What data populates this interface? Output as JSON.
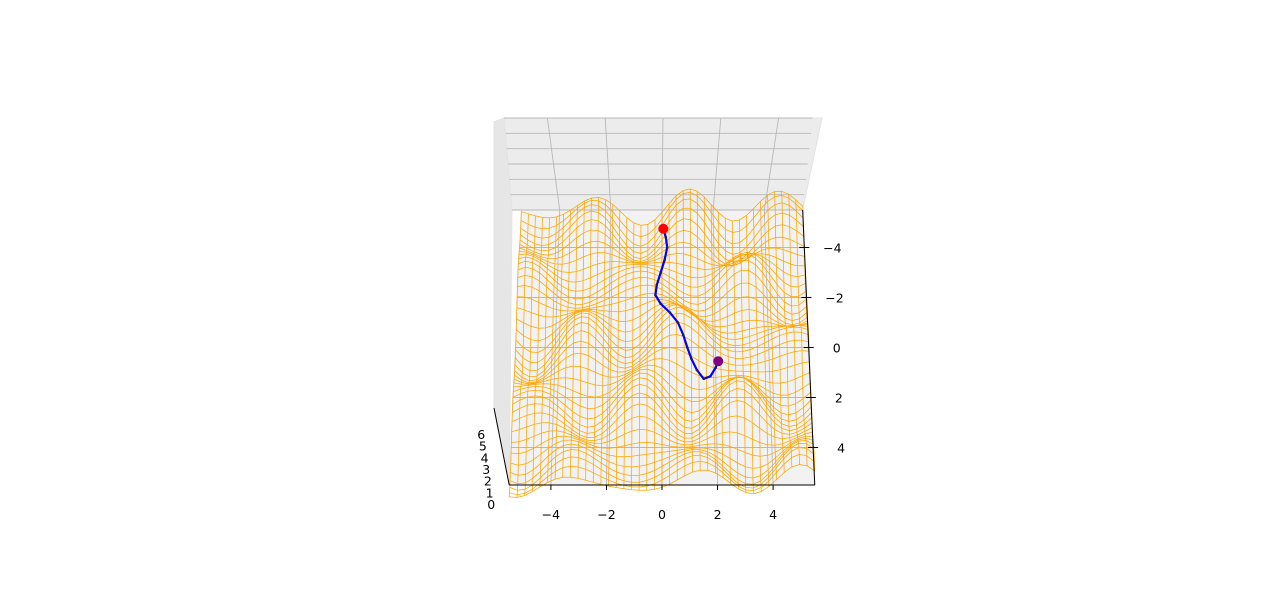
{
  "chart_data": {
    "type": "surface-3d",
    "title": "",
    "xlabel": "",
    "ylabel": "",
    "zlabel": "",
    "x_ticks": [
      -4,
      -2,
      0,
      2,
      4
    ],
    "y_ticks": [
      -4,
      -2,
      0,
      2,
      4
    ],
    "z_ticks": [
      0,
      1,
      2,
      3,
      4,
      5,
      6
    ],
    "x_tick_labels": [
      "−4",
      "−2",
      "0",
      "2",
      "4"
    ],
    "y_tick_labels": [
      "−4",
      "−2",
      "0",
      "2",
      "4"
    ],
    "z_tick_labels": [
      "0",
      "1",
      "2",
      "3",
      "4",
      "5",
      "6"
    ],
    "xlim": [
      -5.5,
      5.5
    ],
    "ylim": [
      -5.5,
      5.5
    ],
    "zlim": [
      0,
      6
    ],
    "grid": true,
    "surface": {
      "style": "wireframe",
      "x_range": [
        -5.5,
        5.5
      ],
      "y_range": [
        -5.5,
        5.5
      ],
      "rows": 40,
      "cols": 40,
      "color": "#ffa500"
    },
    "path": {
      "color": "#0000ff",
      "points": [
        [
          0.05,
          -4.75
        ],
        [
          0.15,
          -4.4
        ],
        [
          0.2,
          -4.0
        ],
        [
          0.1,
          -3.5
        ],
        [
          -0.05,
          -3.0
        ],
        [
          -0.2,
          -2.5
        ],
        [
          -0.25,
          -2.1
        ],
        [
          -0.05,
          -1.75
        ],
        [
          0.3,
          -1.4
        ],
        [
          0.6,
          -1.0
        ],
        [
          0.8,
          -0.5
        ],
        [
          0.95,
          0.0
        ],
        [
          1.1,
          0.45
        ],
        [
          1.3,
          0.9
        ],
        [
          1.55,
          1.25
        ],
        [
          1.8,
          1.15
        ],
        [
          2.0,
          0.8
        ],
        [
          2.1,
          0.55
        ]
      ]
    },
    "markers": [
      {
        "label": "start",
        "x": 0.05,
        "y": -4.75,
        "color": "#ff0000"
      },
      {
        "label": "end",
        "x": 2.1,
        "y": 0.55,
        "color": "#800080"
      }
    ]
  }
}
